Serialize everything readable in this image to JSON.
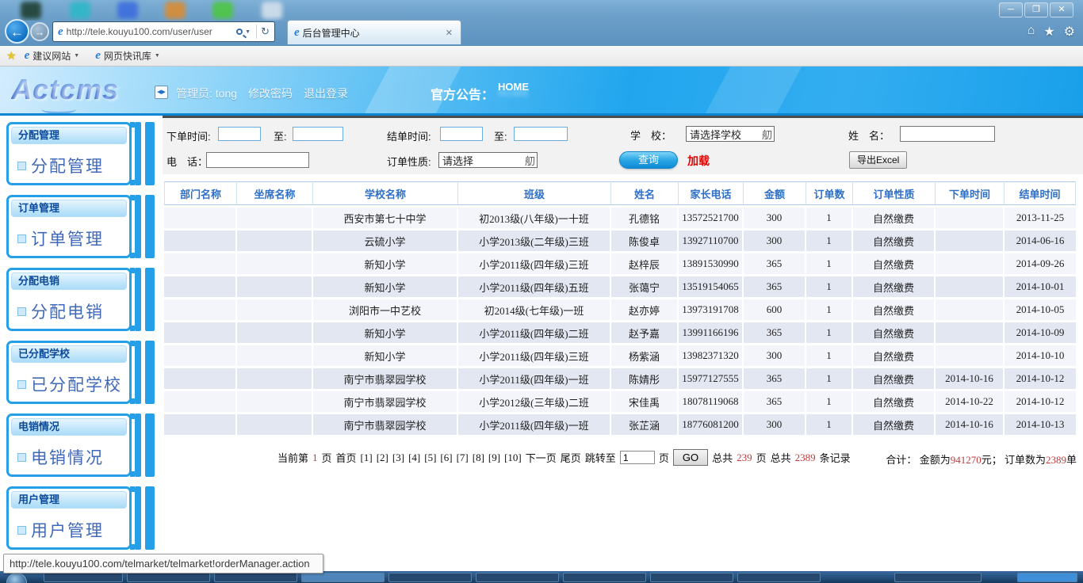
{
  "browser": {
    "url": "http://tele.kouyu100.com/user/user",
    "tab_title": "后台管理中心",
    "window_controls": {
      "minimize": "─",
      "maximize": "❐",
      "close": "✕"
    },
    "nav": {
      "back": "←",
      "forward": "→",
      "refresh": "↻",
      "dropdown": "▼",
      "home": "⌂",
      "star": "★",
      "gear": "⚙"
    },
    "ie_logo": "e",
    "add_favorite_star": "★",
    "favorites": [
      {
        "label": "建议网站"
      },
      {
        "label": "网页快讯库"
      }
    ]
  },
  "header": {
    "logo": "Actcms",
    "toggle_glyph": "◀▶",
    "admin_label": "管理员: tong",
    "change_password": "修改密码",
    "logout": "退出登录",
    "announcement_label": "官方公告：",
    "home_link": "HOME"
  },
  "sidebar": {
    "sections": [
      {
        "header": "分配管理",
        "link": "分配管理"
      },
      {
        "header": "订单管理",
        "link": "订单管理"
      },
      {
        "header": "分配电销",
        "link": "分配电销"
      },
      {
        "header": "已分配学校",
        "link": "已分配学校"
      },
      {
        "header": "电销情况",
        "link": "电销情况"
      },
      {
        "header": "用户管理",
        "link": "用户管理"
      }
    ]
  },
  "filters": {
    "order_time_label": "下单时间:",
    "to_label_1": "至:",
    "close_time_label": "结单时间:",
    "to_label_2": "至:",
    "school_label": "学　校：",
    "school_select_value": "请选择学校",
    "select_glyph": "舠",
    "name_label": "姓　名：",
    "phone_label": "电　话：",
    "order_type_label": "订单性质:",
    "order_type_select_value": "请选择",
    "query_button": "查询",
    "load_link": "加载",
    "export_button": "导出Excel"
  },
  "table": {
    "columns": [
      "部门名称",
      "坐席名称",
      "学校名称",
      "班级",
      "姓名",
      "家长电话",
      "金额",
      "订单数",
      "订单性质",
      "下单时间",
      "结单时间"
    ],
    "rows": [
      [
        "",
        "",
        "西安市第七十中学",
        "初2013级(八年级)一十班",
        "孔德铭",
        "13572521700",
        "300",
        "1",
        "自然缴费",
        "",
        "2013-11-25"
      ],
      [
        "",
        "",
        "云硫小学",
        "小学2013级(二年级)三班",
        "陈俊卓",
        "13927110700",
        "300",
        "1",
        "自然缴费",
        "",
        "2014-06-16"
      ],
      [
        "",
        "",
        "新知小学",
        "小学2011级(四年级)三班",
        "赵梓辰",
        "13891530990",
        "365",
        "1",
        "自然缴费",
        "",
        "2014-09-26"
      ],
      [
        "",
        "",
        "新知小学",
        "小学2011级(四年级)五班",
        "张蔼宁",
        "13519154065",
        "365",
        "1",
        "自然缴费",
        "",
        "2014-10-01"
      ],
      [
        "",
        "",
        "浏阳市一中艺校",
        "初2014级(七年级)一班",
        "赵亦婷",
        "13973191708",
        "600",
        "1",
        "自然缴费",
        "",
        "2014-10-05"
      ],
      [
        "",
        "",
        "新知小学",
        "小学2011级(四年级)二班",
        "赵予嘉",
        "13991166196",
        "365",
        "1",
        "自然缴费",
        "",
        "2014-10-09"
      ],
      [
        "",
        "",
        "新知小学",
        "小学2011级(四年级)三班",
        "杨紫涵",
        "13982371320",
        "300",
        "1",
        "自然缴费",
        "",
        "2014-10-10"
      ],
      [
        "",
        "",
        "南宁市翡翠园学校",
        "小学2011级(四年级)一班",
        "陈婧彤",
        "15977127555",
        "365",
        "1",
        "自然缴费",
        "2014-10-16",
        "2014-10-12"
      ],
      [
        "",
        "",
        "南宁市翡翠园学校",
        "小学2012级(三年级)二班",
        "宋佳禹",
        "18078119068",
        "365",
        "1",
        "自然缴费",
        "2014-10-22",
        "2014-10-12"
      ],
      [
        "",
        "",
        "南宁市翡翠园学校",
        "小学2011级(四年级)一班",
        "张芷涵",
        "18776081200",
        "300",
        "1",
        "自然缴费",
        "2014-10-16",
        "2014-10-13"
      ]
    ]
  },
  "pagination": {
    "current_label": "当前第",
    "current_page": "1",
    "page_word": "页",
    "first": "首页",
    "pages": [
      "[1]",
      "[2]",
      "[3]",
      "[4]",
      "[5]",
      "[6]",
      "[7]",
      "[8]",
      "[9]",
      "[10]"
    ],
    "next": "下一页",
    "last": "尾页",
    "jump_label": "跳转至",
    "jump_value": "1",
    "jump_page_word": "页",
    "go_button": "GO",
    "total_pages_label": "总共",
    "total_pages": "239",
    "total_pages_word": "页",
    "total_records_label": "总共",
    "total_records": "2389",
    "total_records_word": "条记录"
  },
  "totals": {
    "label": "合计：",
    "amount_label": "金额为",
    "amount": "941270",
    "amount_unit": "元；",
    "orders_label": "订单数为",
    "orders": "2389",
    "orders_unit": "单"
  },
  "statusbar": {
    "url": "http://tele.kouyu100.com/telmarket/telmarket!orderManager.action"
  }
}
